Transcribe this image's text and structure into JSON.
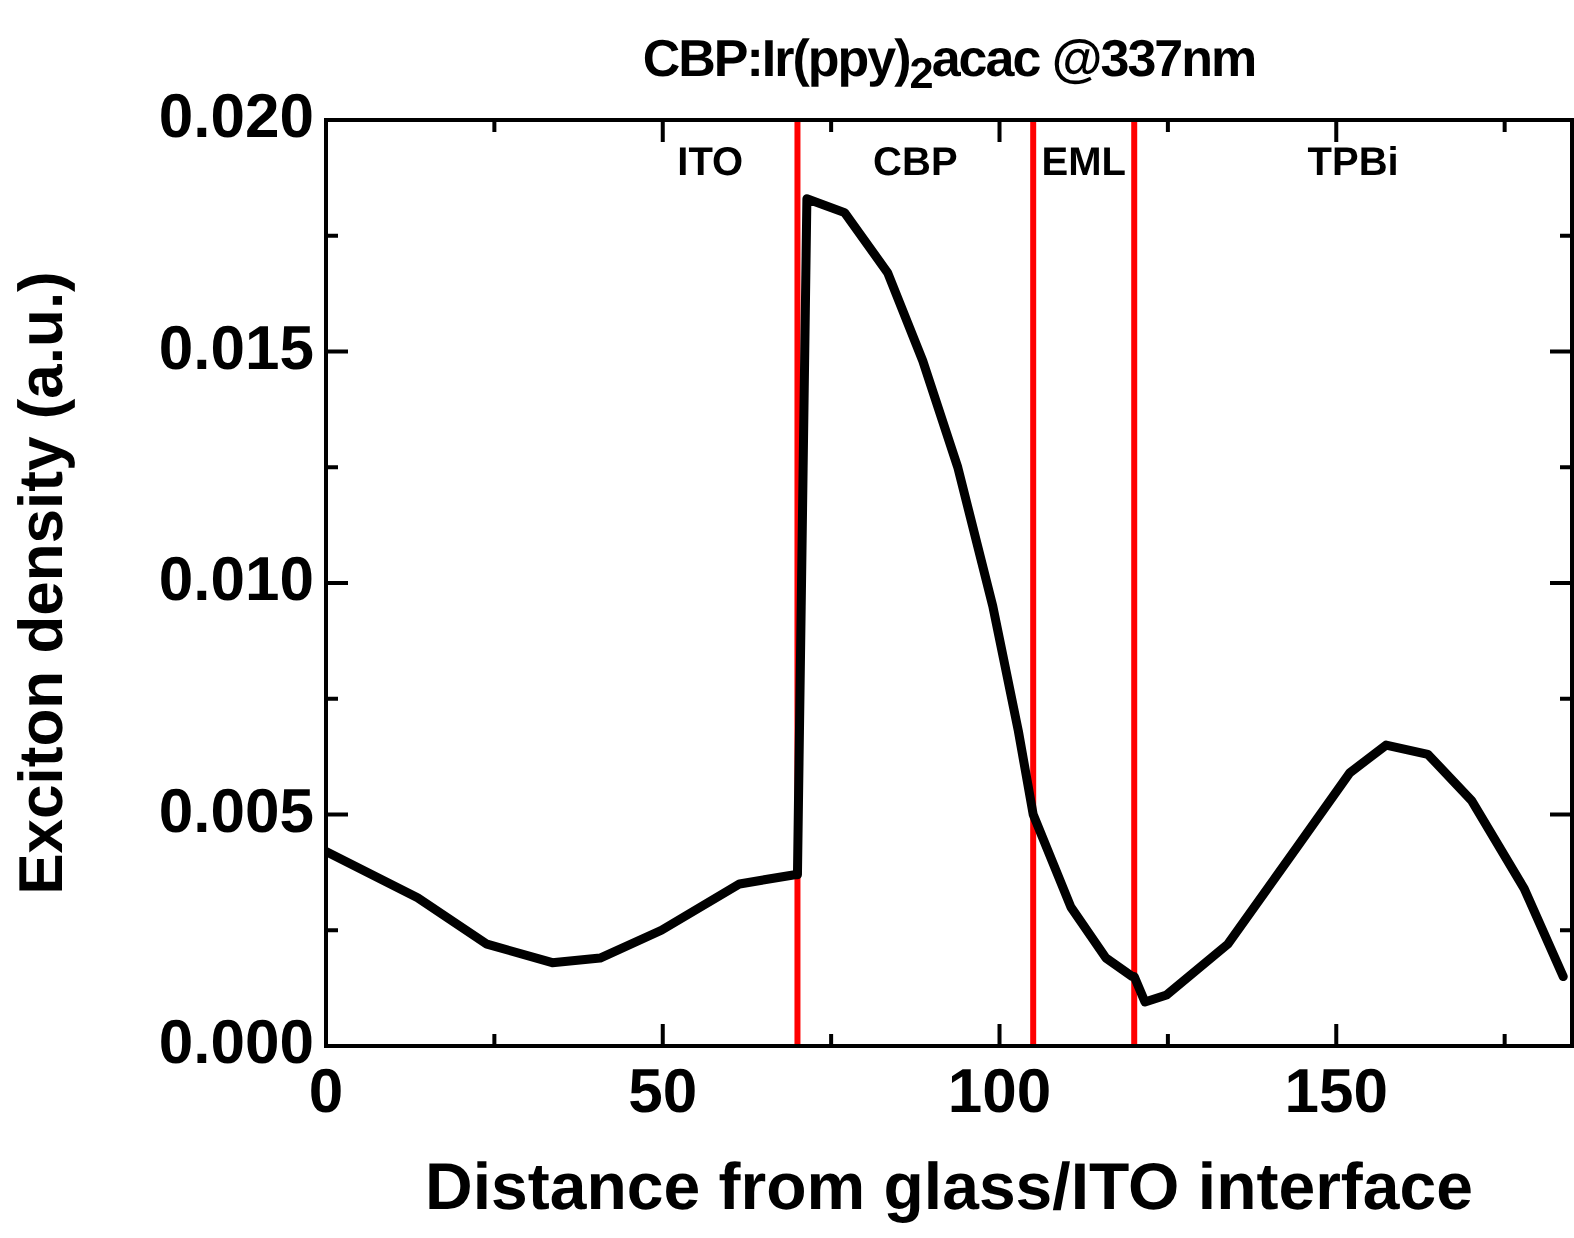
{
  "chart_data": {
    "type": "line",
    "title": "CBP:Ir(ppy)$_{2}$acac @337nm",
    "xlabel": "Distance from glass/ITO interface",
    "ylabel": "Exciton density (a.u.)",
    "series": [
      {
        "color": "#000000",
        "x": [
          0,
          13.6,
          23.9,
          33.6,
          40.7,
          49.8,
          61.4,
          69.6,
          70,
          71.4,
          77,
          83.4,
          88.6,
          93.8,
          99,
          102.8,
          105,
          110.6,
          115.8,
          119.7,
          120,
          121.6,
          124.8,
          133.9,
          144.2,
          152,
          157.4,
          163.6,
          170.1,
          177.9,
          183.7
        ],
        "values": [
          0.0042,
          0.0032,
          0.0022,
          0.0018,
          0.0019,
          0.0025,
          0.0035,
          0.0037,
          0.0037,
          0.0183,
          0.018,
          0.0167,
          0.0148,
          0.0125,
          0.0095,
          0.0068,
          0.005,
          0.003,
          0.0019,
          0.0015,
          0.0015,
          0.00095,
          0.0011,
          0.0022,
          0.0043,
          0.0059,
          0.0065,
          0.0063,
          0.0053,
          0.0034,
          0.0015
        ]
      }
    ],
    "xlim": [
      0,
      185
    ],
    "xticks": [
      0,
      {
        "value": 25,
        "label": null
      },
      50,
      {
        "value": 75,
        "label": null
      },
      100,
      {
        "value": 125,
        "label": null
      },
      150,
      {
        "value": 175,
        "label": null
      }
    ],
    "ylim": [
      0,
      0.02
    ],
    "yticks": [
      {
        "value": 0,
        "label": "0.000"
      },
      {
        "value": 0.0025,
        "label": null
      },
      {
        "value": 0.005,
        "label": "0.005"
      },
      {
        "value": 0.0075,
        "label": null
      },
      {
        "value": 0.01,
        "label": "0.010"
      },
      {
        "value": 0.0125,
        "label": null
      },
      {
        "value": 0.015,
        "label": "0.015"
      },
      {
        "value": 0.0175,
        "label": null
      },
      {
        "value": 0.02,
        "label": "0.020"
      }
    ],
    "ref_lines": [
      {
        "axis": "x",
        "value": 70,
        "color": "#ff0000"
      },
      {
        "axis": "x",
        "value": 105,
        "color": "#ff0000"
      },
      {
        "axis": "x",
        "value": 120,
        "color": "#ff0000"
      }
    ],
    "annotations": [
      "ITO",
      "CBP",
      "EML",
      "TPBi"
    ],
    "grid": false,
    "legend": false,
    "marker": "none",
    "line_style": "solid"
  }
}
